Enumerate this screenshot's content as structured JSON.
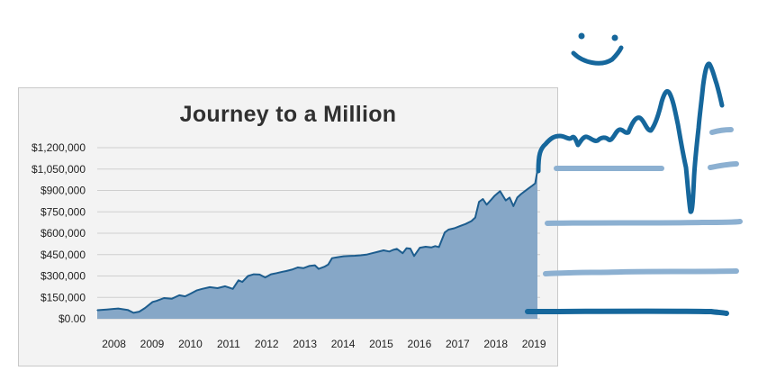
{
  "chart_data": {
    "type": "area",
    "title": "Journey to a Million",
    "xlabel": "",
    "ylabel": "",
    "xlim": [
      2007.75,
      2019.35
    ],
    "ylim": [
      0,
      1200000
    ],
    "grid": true,
    "y_ticks": [
      0,
      150000,
      300000,
      450000,
      600000,
      750000,
      900000,
      1050000,
      1200000
    ],
    "y_tick_labels": [
      "$0.00",
      "$150,000",
      "$300,000",
      "$450,000",
      "$600,000",
      "$750,000",
      "$900,000",
      "$1,050,000",
      "$1,200,000"
    ],
    "x_tick_labels": [
      "2008",
      "2009",
      "2010",
      "2011",
      "2012",
      "2013",
      "2014",
      "2015",
      "2016",
      "2017",
      "2018",
      "2019"
    ],
    "x_tick_values": [
      2008,
      2009,
      2010,
      2011,
      2012,
      2013,
      2014,
      2015,
      2016,
      2017,
      2018,
      2019
    ],
    "fill_color": "#86a7c7",
    "line_color": "#1d5d8e",
    "series": [
      {
        "x": [
          2007.75,
          2008.0,
          2008.3,
          2008.55,
          2008.7,
          2008.85,
          2009.0,
          2009.2,
          2009.3,
          2009.5,
          2009.7,
          2009.9,
          2010.05,
          2010.2,
          2010.35,
          2010.5,
          2010.7,
          2010.9,
          2011.1,
          2011.3,
          2011.45,
          2011.55,
          2011.7,
          2011.85,
          2012.0,
          2012.15,
          2012.3,
          2012.45,
          2012.6,
          2012.7,
          2012.85,
          2013.0,
          2013.15,
          2013.3,
          2013.45,
          2013.55,
          2013.7,
          2013.8,
          2013.9,
          2014.05,
          2014.2,
          2014.35,
          2014.5,
          2014.65,
          2014.8,
          2014.95,
          2015.1,
          2015.25,
          2015.4,
          2015.5,
          2015.6,
          2015.75,
          2015.85,
          2015.95,
          2016.05,
          2016.2,
          2016.35,
          2016.5,
          2016.6,
          2016.7,
          2016.85,
          2016.95,
          2017.1,
          2017.25,
          2017.4,
          2017.55,
          2017.65,
          2017.75,
          2017.85,
          2017.95,
          2018.05,
          2018.15,
          2018.3,
          2018.45,
          2018.55,
          2018.65,
          2018.75,
          2018.85,
          2018.95,
          2019.05,
          2019.15,
          2019.22,
          2019.28
        ],
        "values": [
          60000,
          65000,
          72000,
          62000,
          42000,
          50000,
          75000,
          118000,
          125000,
          145000,
          140000,
          165000,
          157000,
          177000,
          198000,
          210000,
          222000,
          215000,
          228000,
          210000,
          270000,
          258000,
          300000,
          312000,
          310000,
          290000,
          312000,
          320000,
          330000,
          335000,
          345000,
          360000,
          355000,
          370000,
          375000,
          350000,
          365000,
          380000,
          425000,
          432000,
          438000,
          440000,
          442000,
          445000,
          450000,
          460000,
          470000,
          480000,
          472000,
          483000,
          490000,
          460000,
          495000,
          492000,
          440000,
          498000,
          505000,
          500000,
          510000,
          503000,
          605000,
          625000,
          635000,
          650000,
          665000,
          685000,
          710000,
          820000,
          840000,
          800000,
          830000,
          860000,
          895000,
          830000,
          850000,
          790000,
          850000,
          875000,
          895000,
          915000,
          935000,
          950000,
          1040000
        ]
      }
    ]
  },
  "overlay": {
    "stroke_color": "#16679c",
    "faint_color": "#8cb0d1"
  }
}
